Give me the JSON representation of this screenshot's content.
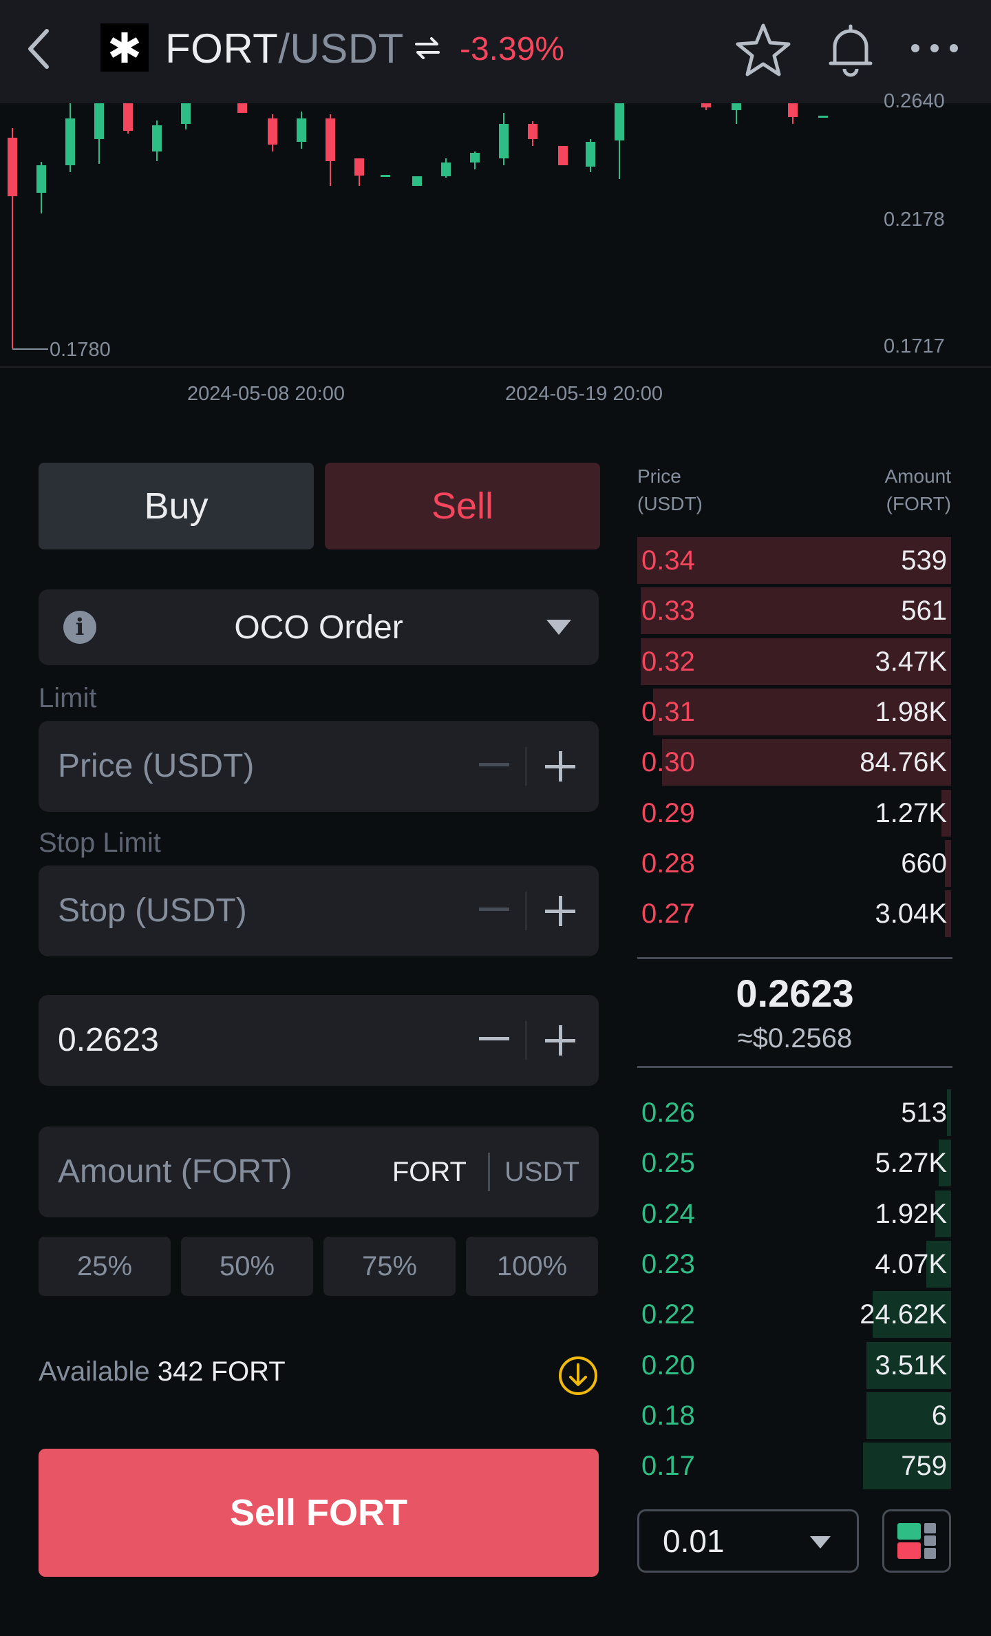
{
  "header": {
    "base": "FORT",
    "quote": "/USDT",
    "change": "-3.39%",
    "icons": [
      "back-icon",
      "fort-logo-icon",
      "swap-icon",
      "star-icon",
      "bell-icon",
      "more-icon"
    ]
  },
  "chart": {
    "y_labels": {
      "top_cut": "0.2640",
      "mid": "0.2178",
      "bottom": "0.1717"
    },
    "low_marker": "0.1780",
    "dates": [
      "2024-05-08 20:00",
      "2024-05-19 20:00"
    ],
    "colors": {
      "up": "#2ebd85",
      "down": "#f6465d"
    }
  },
  "form": {
    "tabs": {
      "buy": "Buy",
      "sell": "Sell"
    },
    "order_type": "OCO Order",
    "limit_label": "Limit",
    "price_placeholder": "Price (USDT)",
    "stop_limit_label": "Stop Limit",
    "stop_placeholder": "Stop (USDT)",
    "limit_value": "0.2623",
    "amount_placeholder": "Amount (FORT)",
    "amount_unit_1": "FORT",
    "amount_unit_2": "USDT",
    "percents": [
      "25%",
      "50%",
      "75%",
      "100%"
    ],
    "available_label": "Available",
    "available_value": "342 FORT",
    "submit": "Sell FORT"
  },
  "orderbook": {
    "header": {
      "price": "Price",
      "price_unit": "(USDT)",
      "amount": "Amount",
      "amount_unit": "(FORT)"
    },
    "asks": [
      {
        "price": "0.34",
        "amount": "539",
        "depth": 1.0
      },
      {
        "price": "0.33",
        "amount": "561",
        "depth": 0.99
      },
      {
        "price": "0.32",
        "amount": "3.47K",
        "depth": 0.99
      },
      {
        "price": "0.31",
        "amount": "1.98K",
        "depth": 0.95
      },
      {
        "price": "0.30",
        "amount": "84.76K",
        "depth": 0.92
      },
      {
        "price": "0.29",
        "amount": "1.27K",
        "depth": 0.03
      },
      {
        "price": "0.28",
        "amount": "660",
        "depth": 0.02
      },
      {
        "price": "0.27",
        "amount": "3.04K",
        "depth": 0.02
      }
    ],
    "mid_price": "0.2623",
    "mid_usd": "≈$0.2568",
    "bids": [
      {
        "price": "0.26",
        "amount": "513",
        "depth": 0.01
      },
      {
        "price": "0.25",
        "amount": "5.27K",
        "depth": 0.04
      },
      {
        "price": "0.24",
        "amount": "1.92K",
        "depth": 0.05
      },
      {
        "price": "0.23",
        "amount": "4.07K",
        "depth": 0.08
      },
      {
        "price": "0.22",
        "amount": "24.62K",
        "depth": 0.25
      },
      {
        "price": "0.20",
        "amount": "3.51K",
        "depth": 0.27
      },
      {
        "price": "0.18",
        "amount": "6",
        "depth": 0.27
      },
      {
        "price": "0.17",
        "amount": "759",
        "depth": 0.28
      }
    ],
    "precision": "0.01"
  }
}
